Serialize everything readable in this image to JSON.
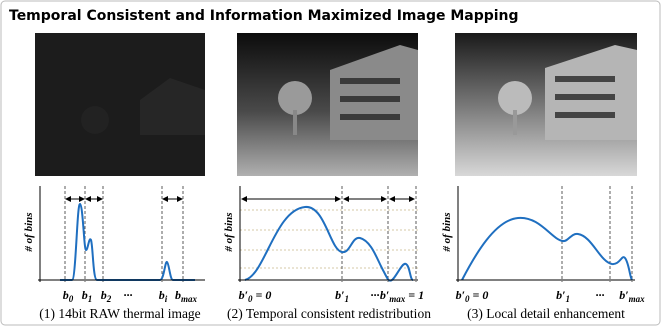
{
  "title": "Temporal Consistent and Information Maximized Image Mapping",
  "panels": [
    {
      "caption": "(1) 14bit RAW thermal image",
      "y_label": "# of bins",
      "x_labels": [
        {
          "main": "b",
          "sub": "0"
        },
        {
          "main": "b",
          "sub": "1"
        },
        {
          "main": "b",
          "sub": "2"
        },
        {
          "main": "···"
        },
        {
          "main": "b",
          "sub": "i"
        },
        {
          "main": "b",
          "sub": "max"
        }
      ]
    },
    {
      "caption": "(2) Temporal consistent redistribution",
      "y_label": "# of bins",
      "x_labels": [
        {
          "main": "b′",
          "sub": "0",
          "after": " = 0"
        },
        {
          "main": "b′",
          "sub": "1"
        },
        {
          "main": "···"
        },
        {
          "main": "b′",
          "sub": "max",
          "after": " = 1"
        }
      ]
    },
    {
      "caption": "(3) Local detail enhancement",
      "y_label": "# of bins",
      "x_labels": [
        {
          "main": "b′",
          "sub": "0",
          "after": " = 0"
        },
        {
          "main": "b′",
          "sub": "1"
        },
        {
          "main": "···"
        },
        {
          "main": "b′",
          "sub": "max"
        }
      ]
    }
  ]
}
